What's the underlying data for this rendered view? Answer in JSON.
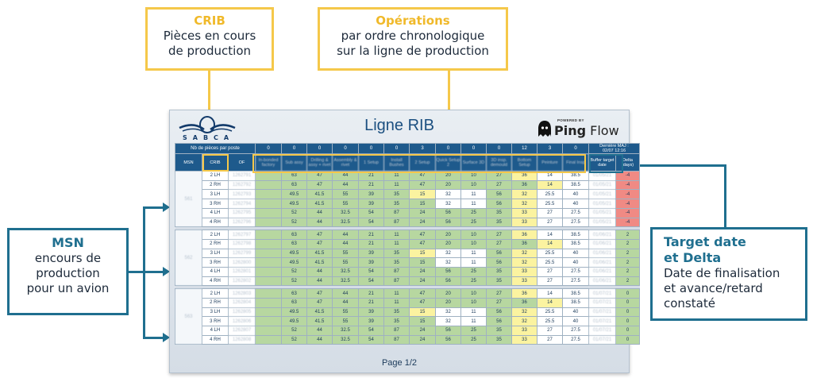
{
  "callouts": {
    "crib": {
      "title": "CRIB",
      "line1": "Pièces en cours",
      "line2": "de production"
    },
    "operations": {
      "title": "Opérations",
      "line1": "par ordre chronologique",
      "line2": "sur la ligne de production"
    },
    "msn": {
      "title": "MSN",
      "line1": "encours de",
      "line2": "production",
      "line3": "pour un avion"
    },
    "target": {
      "title1": "Target date",
      "title2": "et Delta",
      "line1": "Date de finalisation",
      "line2": "et avance/retard",
      "line3": "constaté"
    }
  },
  "screen": {
    "logo_text": "SABCA",
    "title": "Ligne RIB",
    "pingflow_powered": "POWERED BY",
    "pingflow_name_a": "Ping",
    "pingflow_name_b": " Flow",
    "header": {
      "nb_label": "Nb de pièces par poste",
      "counts": [
        "0",
        "0",
        "0",
        "0",
        "0",
        "0",
        "3",
        "0",
        "0",
        "0",
        "12",
        "3",
        "0"
      ],
      "last_update_label": "Dernière MAJ :",
      "last_update_value": "02/07 12:16",
      "msn_col": "MSN",
      "crib_col": "CRIB",
      "of_col": "OF",
      "op_cols": [
        "In-bonded factory",
        "Sub assy",
        "Drilling & assy + rivet",
        "Assembly & rivet",
        "1 Setup",
        "Install Bushes",
        "2 Setup",
        "Quick Setup 2",
        "Surface 3D",
        "3D insp. demould",
        "Bottom Setup",
        "Peinture",
        "Final Insp"
      ],
      "buffer_col": "Buffer target date",
      "delta_col": "Delta (days)"
    },
    "groups": [
      {
        "msn": "561",
        "rows": [
          {
            "crib": "2 LH",
            "of": "1262791",
            "v": [
              "",
              "63",
              "47",
              "44",
              "21",
              "11",
              "47",
              "20",
              "10",
              "27",
              "36",
              "14",
              "38.5"
            ],
            "buffer": "01/05/21",
            "delta": "-4"
          },
          {
            "crib": "2 RH",
            "of": "1262792",
            "v": [
              "",
              "63",
              "47",
              "44",
              "21",
              "11",
              "47",
              "20",
              "10",
              "27",
              "36",
              "14",
              "38.5"
            ],
            "buffer": "01/05/21",
            "delta": "-4"
          },
          {
            "crib": "3 LH",
            "of": "1262793",
            "v": [
              "",
              "49.5",
              "41.5",
              "55",
              "39",
              "35",
              "15",
              "32",
              "11",
              "56",
              "32",
              "25.5",
              "40"
            ],
            "buffer": "01/05/21",
            "delta": "-4"
          },
          {
            "crib": "3 RH",
            "of": "1262794",
            "v": [
              "",
              "49.5",
              "41.5",
              "55",
              "39",
              "35",
              "15",
              "32",
              "11",
              "56",
              "32",
              "25.5",
              "40"
            ],
            "buffer": "01/05/21",
            "delta": "-4"
          },
          {
            "crib": "4 LH",
            "of": "1262795",
            "v": [
              "",
              "52",
              "44",
              "32.5",
              "54",
              "87",
              "24",
              "56",
              "25",
              "35",
              "33",
              "27",
              "27.5"
            ],
            "buffer": "01/05/21",
            "delta": "-4"
          },
          {
            "crib": "4 RH",
            "of": "1262796",
            "v": [
              "",
              "52",
              "44",
              "32.5",
              "54",
              "87",
              "24",
              "56",
              "25",
              "35",
              "33",
              "27",
              "27.5"
            ],
            "buffer": "01/05/21",
            "delta": "-4"
          }
        ]
      },
      {
        "msn": "562",
        "rows": [
          {
            "crib": "2 LH",
            "of": "1262797",
            "v": [
              "",
              "63",
              "47",
              "44",
              "21",
              "11",
              "47",
              "20",
              "10",
              "27",
              "36",
              "14",
              "38.5"
            ],
            "buffer": "01/06/21",
            "delta": "2"
          },
          {
            "crib": "2 RH",
            "of": "1262798",
            "v": [
              "",
              "63",
              "47",
              "44",
              "21",
              "11",
              "47",
              "20",
              "10",
              "27",
              "36",
              "14",
              "38.5"
            ],
            "buffer": "01/06/21",
            "delta": "2"
          },
          {
            "crib": "3 LH",
            "of": "1262799",
            "v": [
              "",
              "49.5",
              "41.5",
              "55",
              "39",
              "35",
              "15",
              "32",
              "11",
              "56",
              "32",
              "25.5",
              "40"
            ],
            "buffer": "01/06/21",
            "delta": "2"
          },
          {
            "crib": "3 RH",
            "of": "1262800",
            "v": [
              "",
              "49.5",
              "41.5",
              "55",
              "39",
              "35",
              "15",
              "32",
              "11",
              "56",
              "32",
              "25.5",
              "40"
            ],
            "buffer": "01/06/21",
            "delta": "2"
          },
          {
            "crib": "4 LH",
            "of": "1262801",
            "v": [
              "",
              "52",
              "44",
              "32.5",
              "54",
              "87",
              "24",
              "56",
              "25",
              "35",
              "33",
              "27",
              "27.5"
            ],
            "buffer": "01/06/21",
            "delta": "2"
          },
          {
            "crib": "4 RH",
            "of": "1262802",
            "v": [
              "",
              "52",
              "44",
              "32.5",
              "54",
              "87",
              "24",
              "56",
              "25",
              "35",
              "33",
              "27",
              "27.5"
            ],
            "buffer": "01/06/21",
            "delta": "2"
          }
        ]
      },
      {
        "msn": "563",
        "rows": [
          {
            "crib": "2 LH",
            "of": "1262803",
            "v": [
              "",
              "63",
              "47",
              "44",
              "21",
              "11",
              "47",
              "20",
              "10",
              "27",
              "36",
              "14",
              "38.5"
            ],
            "buffer": "01/07/21",
            "delta": "0"
          },
          {
            "crib": "2 RH",
            "of": "1262804",
            "v": [
              "",
              "63",
              "47",
              "44",
              "21",
              "11",
              "47",
              "20",
              "10",
              "27",
              "36",
              "14",
              "38.5"
            ],
            "buffer": "01/07/21",
            "delta": "0"
          },
          {
            "crib": "3 LH",
            "of": "1262805",
            "v": [
              "",
              "49.5",
              "41.5",
              "55",
              "39",
              "35",
              "15",
              "32",
              "11",
              "56",
              "32",
              "25.5",
              "40"
            ],
            "buffer": "01/07/21",
            "delta": "0"
          },
          {
            "crib": "3 RH",
            "of": "1262806",
            "v": [
              "",
              "49.5",
              "41.5",
              "55",
              "39",
              "35",
              "15",
              "32",
              "11",
              "56",
              "32",
              "25.5",
              "40"
            ],
            "buffer": "01/07/21",
            "delta": "0"
          },
          {
            "crib": "4 LH",
            "of": "1262807",
            "v": [
              "",
              "52",
              "44",
              "32.5",
              "54",
              "87",
              "24",
              "56",
              "25",
              "35",
              "33",
              "27",
              "27.5"
            ],
            "buffer": "01/07/21",
            "delta": "0"
          },
          {
            "crib": "4 RH",
            "of": "1262808",
            "v": [
              "",
              "52",
              "44",
              "32.5",
              "54",
              "87",
              "24",
              "56",
              "25",
              "35",
              "33",
              "27",
              "27.5"
            ],
            "buffer": "01/07/21",
            "delta": "0"
          }
        ]
      }
    ],
    "footer": "Page 1/2"
  },
  "colors": {
    "callout_yellow": "#f5c84a",
    "callout_blue": "#1f6f8f",
    "header_bg": "#1e5a8c",
    "cell_green": "#b7d7a0",
    "cell_yellow": "#fbf3a0",
    "cell_red": "#f08a84"
  }
}
